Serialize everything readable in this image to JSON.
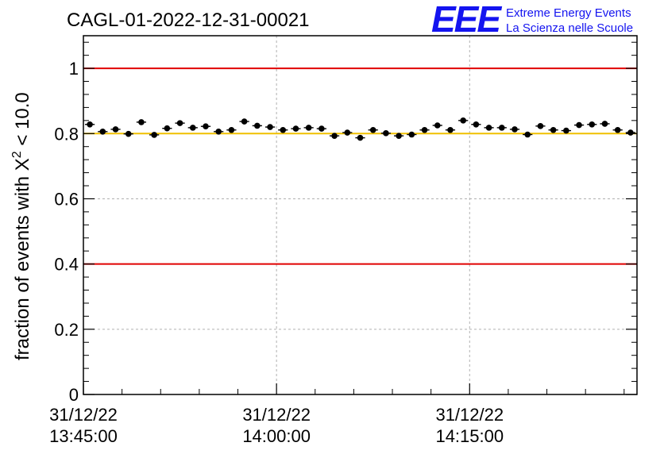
{
  "chart_data": {
    "type": "scatter",
    "title": "CAGL-01-2022-12-31-00021",
    "ylabel_main": "fraction of events with ",
    "ylabel_symbol": "X",
    "ylabel_exp": "2",
    "ylabel_tail": " < 10.0",
    "ylim": [
      0,
      1.1
    ],
    "y_ticks": [
      "0",
      "0.2",
      "0.4",
      "0.6",
      "0.8",
      "1"
    ],
    "x_ticks": [
      {
        "date": "31/12/22",
        "time": "13:45:00"
      },
      {
        "date": "31/12/22",
        "time": "14:00:00"
      },
      {
        "date": "31/12/22",
        "time": "14:15:00"
      }
    ],
    "grid": true,
    "reference_lines": [
      {
        "y": 1.0,
        "color": "#e00000"
      },
      {
        "y": 0.4,
        "color": "#e00000"
      },
      {
        "y": 0.8,
        "color": "#f0c000"
      }
    ],
    "x_start": "13:45:00",
    "x_end": "14:28:00",
    "bin_minutes": 1,
    "x": [
      "13:45:30",
      "13:46:30",
      "13:47:30",
      "13:48:30",
      "13:49:30",
      "13:50:30",
      "13:51:30",
      "13:52:30",
      "13:53:30",
      "13:54:30",
      "13:55:30",
      "13:56:30",
      "13:57:30",
      "13:58:30",
      "13:59:30",
      "14:00:30",
      "14:01:30",
      "14:02:30",
      "14:03:30",
      "14:04:30",
      "14:05:30",
      "14:06:30",
      "14:07:30",
      "14:08:30",
      "14:09:30",
      "14:10:30",
      "14:11:30",
      "14:12:30",
      "14:13:30",
      "14:14:30",
      "14:15:30",
      "14:16:30",
      "14:17:30",
      "14:18:30",
      "14:19:30",
      "14:20:30",
      "14:21:30",
      "14:22:30",
      "14:23:30",
      "14:24:30",
      "14:25:30",
      "14:26:30",
      "14:27:30"
    ],
    "values": [
      0.828,
      0.806,
      0.813,
      0.799,
      0.835,
      0.796,
      0.816,
      0.832,
      0.818,
      0.822,
      0.806,
      0.811,
      0.837,
      0.824,
      0.82,
      0.811,
      0.815,
      0.818,
      0.815,
      0.793,
      0.803,
      0.787,
      0.811,
      0.801,
      0.793,
      0.797,
      0.811,
      0.825,
      0.811,
      0.84,
      0.828,
      0.818,
      0.818,
      0.813,
      0.797,
      0.823,
      0.811,
      0.809,
      0.826,
      0.828,
      0.83,
      0.811,
      0.803
    ],
    "errors": [
      0.008,
      0.008,
      0.008,
      0.008,
      0.008,
      0.008,
      0.008,
      0.008,
      0.008,
      0.008,
      0.008,
      0.008,
      0.008,
      0.008,
      0.008,
      0.008,
      0.008,
      0.008,
      0.008,
      0.008,
      0.008,
      0.008,
      0.008,
      0.008,
      0.008,
      0.008,
      0.008,
      0.008,
      0.008,
      0.008,
      0.008,
      0.008,
      0.008,
      0.008,
      0.008,
      0.008,
      0.008,
      0.008,
      0.008,
      0.008,
      0.008,
      0.008,
      0.008
    ],
    "colors": {
      "points": "#000000",
      "grid": "#b0b0b0",
      "frame": "#000000"
    }
  },
  "logo": {
    "mark": "EEE",
    "line1": "Extreme Energy Events",
    "line2": "La Scienza nelle Scuole",
    "color": "#1414f0"
  }
}
